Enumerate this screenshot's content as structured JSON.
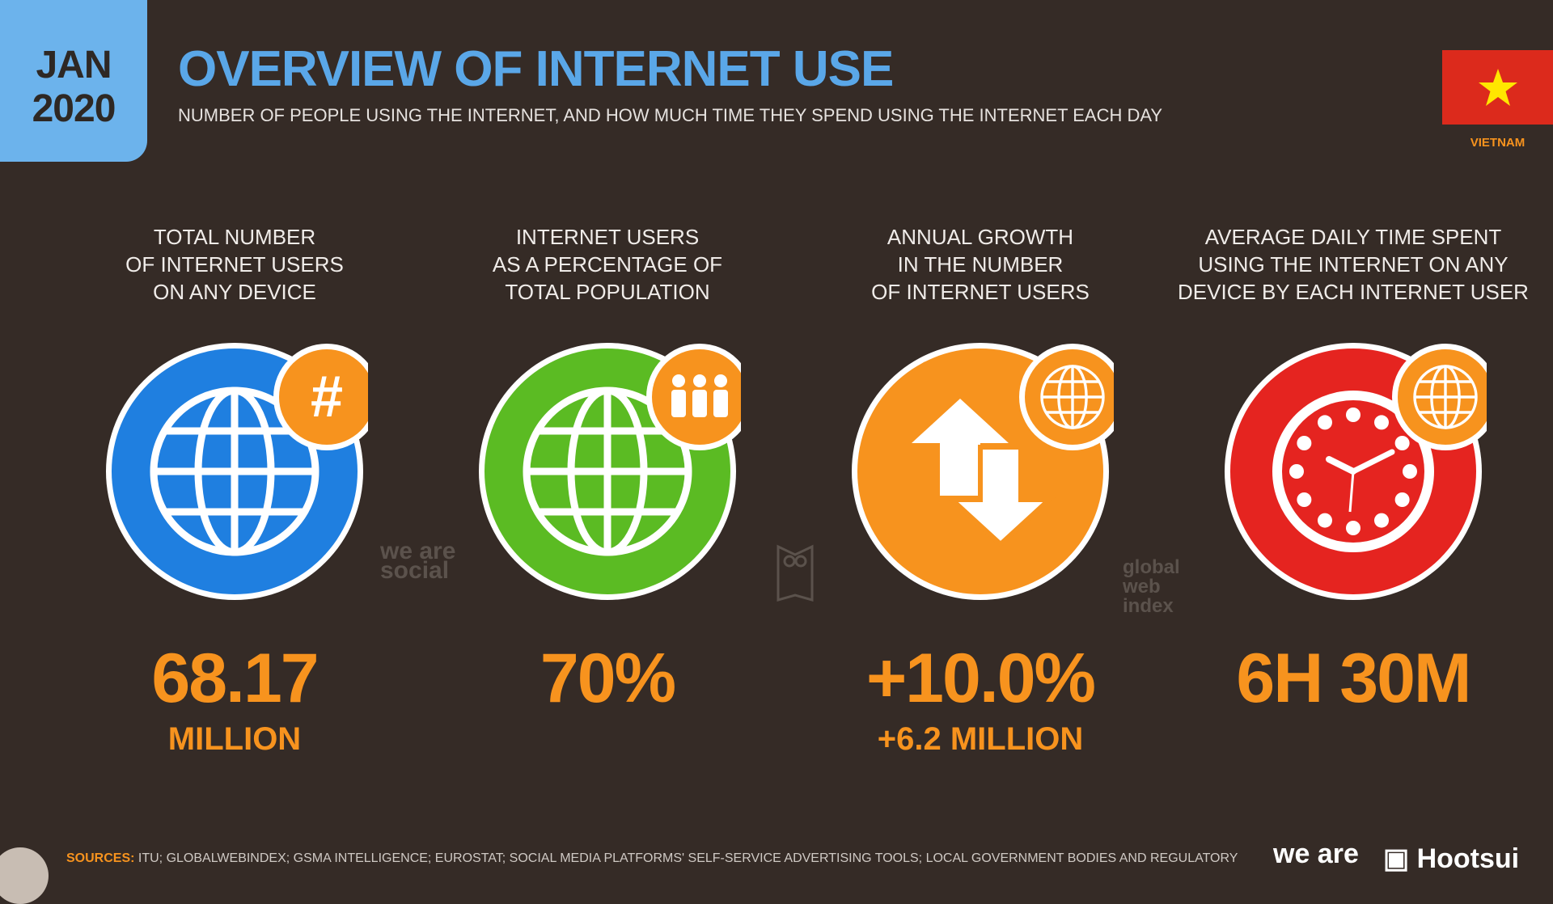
{
  "date": {
    "month": "JAN",
    "year": "2020"
  },
  "header": {
    "title": "OVERVIEW OF INTERNET USE",
    "subtitle": "NUMBER OF PEOPLE USING THE INTERNET, AND HOW MUCH TIME THEY SPEND USING THE INTERNET EACH DAY"
  },
  "country": {
    "name": "VIETNAM",
    "flag_colors": {
      "field": "#dc2a1c",
      "star": "#ffe600"
    }
  },
  "colors": {
    "accent": "#f7931e",
    "title": "#5aa7e8",
    "background": "#352b26"
  },
  "stats": [
    {
      "heading": [
        "TOTAL NUMBER",
        "OF INTERNET USERS",
        "ON ANY DEVICE"
      ],
      "value": "68.17",
      "sub": "MILLION",
      "icon": "globe-icon",
      "badge": "hash-icon",
      "color": "#1f7fe0"
    },
    {
      "heading": [
        "INTERNET USERS",
        "AS A PERCENTAGE OF",
        "TOTAL POPULATION"
      ],
      "value": "70%",
      "sub": "",
      "icon": "globe-icon",
      "badge": "people-icon",
      "color": "#5bbb23"
    },
    {
      "heading": [
        "ANNUAL GROWTH",
        "IN THE NUMBER",
        "OF INTERNET USERS"
      ],
      "value": "+10.0%",
      "sub": "+6.2 MILLION",
      "icon": "up-down-arrows-icon",
      "badge": "globe-icon",
      "color": "#f7931e"
    },
    {
      "heading": [
        "AVERAGE DAILY TIME SPENT",
        "USING THE INTERNET ON ANY",
        "DEVICE BY EACH INTERNET USER"
      ],
      "value": "6H 30M",
      "sub": "",
      "icon": "clock-icon",
      "badge": "globe-icon",
      "color": "#e52420"
    }
  ],
  "watermarks": {
    "wearesocial": "we are social",
    "gwi": "global web index"
  },
  "footer": {
    "sources_label": "SOURCES:",
    "sources_text": "ITU; GLOBALWEBINDEX; GSMA INTELLIGENCE; EUROSTAT; SOCIAL MEDIA PLATFORMS' SELF-SERVICE ADVERTISING TOOLS; LOCAL GOVERNMENT BODIES AND REGULATORY",
    "logo_wearesocial": "we are",
    "logo_hootsuite": "Hootsui"
  }
}
